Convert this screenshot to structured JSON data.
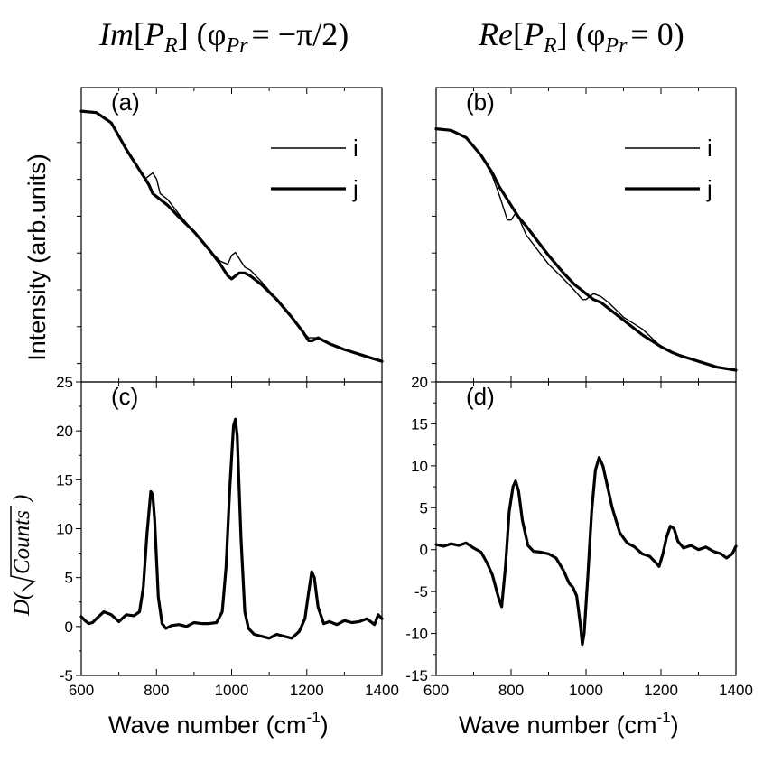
{
  "figure": {
    "col_titles": [
      {
        "prefix": "Im",
        "symbol": "P",
        "subscript": "R",
        "phi_sub": "Pr",
        "equals": "= −π/2"
      },
      {
        "prefix": "Re",
        "symbol": "P",
        "subscript": "R",
        "phi_sub": "Pr",
        "equals": "= 0"
      }
    ],
    "ylabel_top": "Intensity (arb.units)",
    "ylabel_bottom": {
      "prefix": "D",
      "radicand": "Counts"
    },
    "xlabel": {
      "text": "Wave number (cm",
      "sup": "-1",
      "close": ")"
    }
  },
  "chart_data": [
    {
      "panel": "(a)",
      "type": "line",
      "xlim": [
        600,
        1400
      ],
      "y_ticks": [],
      "x_tick_labels": [],
      "legend": {
        "position": "top-right",
        "entries": [
          "i",
          "j"
        ]
      },
      "series": [
        {
          "name": "i",
          "width": "thin",
          "x": [
            600,
            640,
            680,
            720,
            750,
            770,
            780,
            790,
            800,
            810,
            830,
            860,
            900,
            940,
            970,
            990,
            1000,
            1010,
            1020,
            1035,
            1050,
            1080,
            1120,
            1160,
            1190,
            1205,
            1215,
            1230,
            1260,
            1300,
            1350,
            1400
          ],
          "y": [
            0.92,
            0.915,
            0.88,
            0.79,
            0.73,
            0.69,
            0.7,
            0.71,
            0.69,
            0.64,
            0.62,
            0.57,
            0.51,
            0.45,
            0.41,
            0.4,
            0.43,
            0.44,
            0.42,
            0.39,
            0.38,
            0.34,
            0.28,
            0.22,
            0.17,
            0.15,
            0.15,
            0.15,
            0.13,
            0.11,
            0.09,
            0.07
          ]
        },
        {
          "name": "j",
          "width": "thick",
          "x": [
            600,
            640,
            680,
            720,
            750,
            770,
            780,
            790,
            800,
            810,
            830,
            860,
            900,
            940,
            970,
            990,
            1000,
            1010,
            1020,
            1035,
            1050,
            1080,
            1120,
            1160,
            1190,
            1205,
            1215,
            1230,
            1260,
            1300,
            1350,
            1400
          ],
          "y": [
            0.92,
            0.915,
            0.88,
            0.79,
            0.73,
            0.69,
            0.67,
            0.64,
            0.63,
            0.62,
            0.6,
            0.56,
            0.51,
            0.45,
            0.4,
            0.36,
            0.35,
            0.36,
            0.37,
            0.37,
            0.36,
            0.33,
            0.28,
            0.22,
            0.17,
            0.14,
            0.14,
            0.15,
            0.13,
            0.11,
            0.09,
            0.07
          ]
        }
      ]
    },
    {
      "panel": "(b)",
      "type": "line",
      "xlim": [
        600,
        1400
      ],
      "y_ticks": [],
      "x_tick_labels": [],
      "legend": {
        "position": "top-right",
        "entries": [
          "i",
          "j"
        ]
      },
      "series": [
        {
          "name": "i",
          "width": "thin",
          "x": [
            600,
            640,
            680,
            720,
            750,
            770,
            790,
            800,
            810,
            820,
            840,
            870,
            900,
            940,
            970,
            990,
            1000,
            1020,
            1040,
            1060,
            1100,
            1150,
            1200,
            1230,
            1250,
            1300,
            1350,
            1400
          ],
          "y": [
            0.86,
            0.855,
            0.83,
            0.77,
            0.7,
            0.63,
            0.55,
            0.55,
            0.57,
            0.56,
            0.5,
            0.45,
            0.4,
            0.35,
            0.31,
            0.28,
            0.28,
            0.3,
            0.29,
            0.27,
            0.22,
            0.18,
            0.12,
            0.1,
            0.09,
            0.07,
            0.05,
            0.04
          ]
        },
        {
          "name": "j",
          "width": "thick",
          "x": [
            600,
            640,
            680,
            720,
            750,
            770,
            790,
            800,
            810,
            820,
            840,
            870,
            900,
            940,
            970,
            990,
            1000,
            1020,
            1040,
            1060,
            1100,
            1150,
            1200,
            1230,
            1250,
            1300,
            1350,
            1400
          ],
          "y": [
            0.86,
            0.855,
            0.83,
            0.77,
            0.71,
            0.66,
            0.62,
            0.6,
            0.58,
            0.56,
            0.53,
            0.48,
            0.43,
            0.37,
            0.33,
            0.31,
            0.3,
            0.28,
            0.27,
            0.25,
            0.21,
            0.16,
            0.12,
            0.1,
            0.09,
            0.07,
            0.05,
            0.04
          ]
        }
      ]
    },
    {
      "panel": "(c)",
      "type": "line",
      "xlim": [
        600,
        1400
      ],
      "ylim": [
        -5,
        25
      ],
      "y_ticks": [
        -5,
        0,
        5,
        10,
        15,
        20,
        25
      ],
      "x_tick_labels": [
        600,
        800,
        1000,
        1200,
        1400
      ],
      "series": [
        {
          "name": "",
          "width": "thick",
          "x": [
            600,
            610,
            620,
            630,
            640,
            660,
            680,
            700,
            720,
            740,
            755,
            765,
            775,
            785,
            790,
            795,
            805,
            815,
            825,
            840,
            860,
            880,
            900,
            920,
            940,
            960,
            975,
            985,
            995,
            1005,
            1010,
            1015,
            1025,
            1035,
            1045,
            1060,
            1080,
            1100,
            1120,
            1140,
            1160,
            1180,
            1195,
            1205,
            1213,
            1220,
            1230,
            1245,
            1260,
            1280,
            1300,
            1320,
            1340,
            1360,
            1380,
            1390,
            1400
          ],
          "y": [
            1.0,
            0.6,
            0.3,
            0.4,
            0.8,
            1.5,
            1.2,
            0.5,
            1.2,
            1.1,
            1.5,
            4.0,
            9.5,
            13.8,
            13.5,
            11.0,
            3.0,
            0.3,
            -0.2,
            0.1,
            0.2,
            0.0,
            0.4,
            0.3,
            0.3,
            0.4,
            1.5,
            6.0,
            14.0,
            20.5,
            21.2,
            19.5,
            9.0,
            1.5,
            -0.2,
            -0.8,
            -1.0,
            -1.2,
            -0.8,
            -1.0,
            -1.2,
            -0.5,
            0.8,
            3.5,
            5.6,
            5.0,
            2.0,
            0.3,
            0.5,
            0.2,
            0.6,
            0.4,
            0.5,
            0.8,
            0.2,
            1.2,
            0.8
          ]
        }
      ]
    },
    {
      "panel": "(d)",
      "type": "line",
      "xlim": [
        600,
        1400
      ],
      "ylim": [
        -15,
        20
      ],
      "y_ticks": [
        -15,
        -10,
        -5,
        0,
        5,
        10,
        15,
        20
      ],
      "x_tick_labels": [
        600,
        800,
        1000,
        1200,
        1400
      ],
      "series": [
        {
          "name": "",
          "width": "thick",
          "x": [
            600,
            620,
            640,
            660,
            680,
            700,
            720,
            735,
            750,
            765,
            775,
            785,
            795,
            805,
            812,
            820,
            830,
            845,
            860,
            880,
            900,
            920,
            940,
            955,
            965,
            975,
            985,
            990,
            995,
            1005,
            1015,
            1025,
            1035,
            1045,
            1055,
            1070,
            1090,
            1110,
            1130,
            1150,
            1170,
            1185,
            1195,
            1205,
            1215,
            1225,
            1235,
            1245,
            1260,
            1280,
            1300,
            1320,
            1340,
            1360,
            1375,
            1390,
            1400
          ],
          "y": [
            0.6,
            0.4,
            0.7,
            0.5,
            0.8,
            0.2,
            -0.3,
            -1.5,
            -3.0,
            -5.5,
            -6.8,
            -2.0,
            4.5,
            7.5,
            8.2,
            7.0,
            3.5,
            0.5,
            -0.2,
            -0.3,
            -0.5,
            -1.0,
            -2.5,
            -4.0,
            -4.5,
            -5.5,
            -9.0,
            -11.3,
            -10.0,
            -3.0,
            4.5,
            9.5,
            11.0,
            10.0,
            8.0,
            5.0,
            2.0,
            0.8,
            0.3,
            -0.5,
            -0.8,
            -1.5,
            -2.0,
            -0.5,
            1.5,
            2.8,
            2.5,
            1.0,
            0.2,
            0.5,
            0.0,
            0.3,
            -0.2,
            -0.5,
            -1.0,
            -0.5,
            0.4
          ]
        }
      ]
    }
  ]
}
